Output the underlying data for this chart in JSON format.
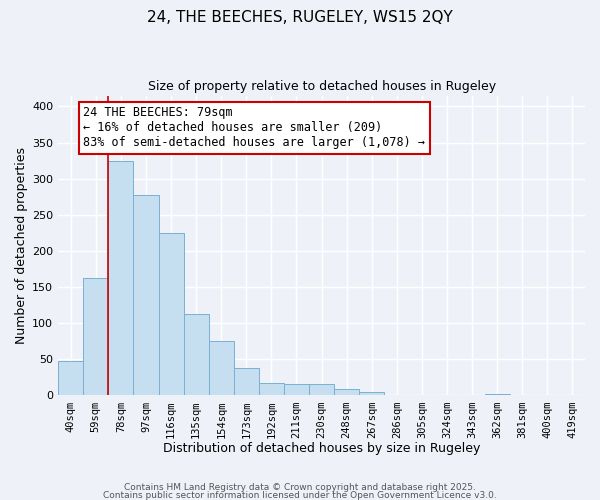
{
  "title": "24, THE BEECHES, RUGELEY, WS15 2QY",
  "subtitle": "Size of property relative to detached houses in Rugeley",
  "xlabel": "Distribution of detached houses by size in Rugeley",
  "ylabel": "Number of detached properties",
  "bar_color": "#c5dff0",
  "bar_edge_color": "#7ab0d4",
  "background_color": "#eef2f8",
  "grid_color": "#ffffff",
  "tick_labels": [
    "40sqm",
    "59sqm",
    "78sqm",
    "97sqm",
    "116sqm",
    "135sqm",
    "154sqm",
    "173sqm",
    "192sqm",
    "211sqm",
    "230sqm",
    "248sqm",
    "267sqm",
    "286sqm",
    "305sqm",
    "324sqm",
    "343sqm",
    "362sqm",
    "381sqm",
    "400sqm",
    "419sqm"
  ],
  "bar_heights": [
    48,
    162,
    325,
    278,
    225,
    113,
    75,
    38,
    17,
    16,
    16,
    9,
    5,
    0,
    0,
    0,
    0,
    2,
    0,
    0,
    0
  ],
  "vline_x_idx": 2,
  "vline_color": "#cc0000",
  "annotation_title": "24 THE BEECHES: 79sqm",
  "annotation_line1": "← 16% of detached houses are smaller (209)",
  "annotation_line2": "83% of semi-detached houses are larger (1,078) →",
  "annotation_box_color": "#ffffff",
  "annotation_box_edge": "#cc0000",
  "ylim": [
    0,
    415
  ],
  "yticks": [
    0,
    50,
    100,
    150,
    200,
    250,
    300,
    350,
    400
  ],
  "footnote1": "Contains HM Land Registry data © Crown copyright and database right 2025.",
  "footnote2": "Contains public sector information licensed under the Open Government Licence v3.0."
}
